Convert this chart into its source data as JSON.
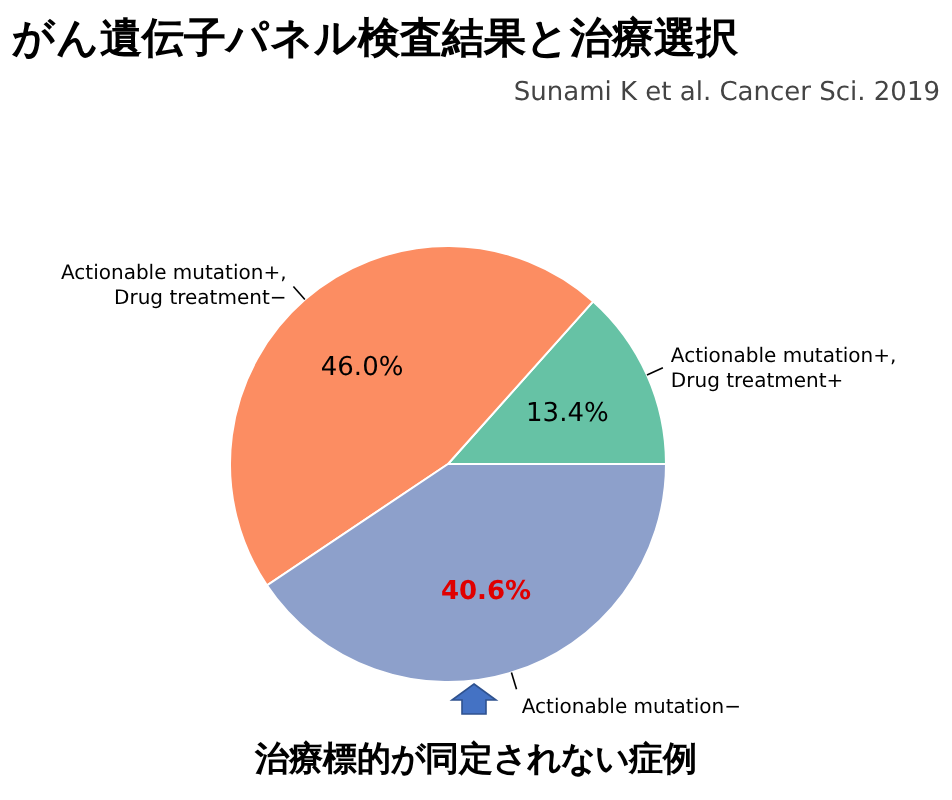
{
  "chart_data": {
    "type": "pie",
    "title": "がん遺伝子パネル検査結果と治療選択",
    "annotations": [
      "Sunami K et al. Cancer Sci. 2019",
      {
        "text": "治療標的が同定されない症例",
        "x": "Actionable mutation−"
      }
    ],
    "categories": [
      "Actionable mutation+,\nDrug treatment+",
      "Actionable mutation+,\nDrug treatment−",
      "Actionable mutation−"
    ],
    "values": [
      13.4,
      46.0,
      40.6
    ],
    "colors": [
      "#66c2a5",
      "#fc8d62",
      "#8da0cb"
    ],
    "value_labels": [
      "13.4%",
      "46.0%",
      "40.6%"
    ]
  }
}
